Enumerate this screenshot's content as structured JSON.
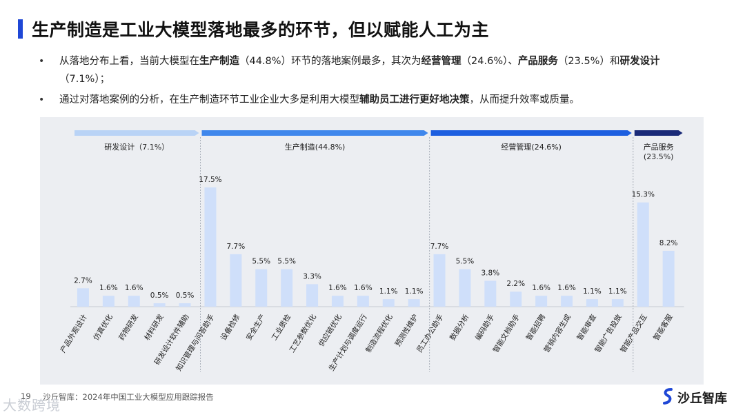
{
  "title": "生产制造是工业大模型落地最多的环节，但以赋能人工为主",
  "bullets": [
    {
      "parts": [
        {
          "t": "从落地分布上看，当前大模型在",
          "b": false
        },
        {
          "t": "生产制造",
          "b": true
        },
        {
          "t": "（44.8%）环节的落地案例最多，其次为",
          "b": false
        },
        {
          "t": "经营管理",
          "b": true
        },
        {
          "t": "（24.6%）、",
          "b": false
        },
        {
          "t": "产品服务",
          "b": true
        },
        {
          "t": "（23.5%）和",
          "b": false
        },
        {
          "t": "研发设计",
          "b": true
        },
        {
          "t": "（7.1%）；",
          "b": false
        }
      ]
    },
    {
      "parts": [
        {
          "t": "通过对落地案例的分析，在生产制造环节工业企业大多是利用大模型",
          "b": false
        },
        {
          "t": "辅助员工进行更好地决策",
          "b": true
        },
        {
          "t": "，从而提升效率或质量。",
          "b": false
        }
      ]
    }
  ],
  "chart_data": {
    "type": "bar",
    "groups": [
      {
        "name": "研发设计（7.1%）",
        "color": "#b9d3f6",
        "categories": [
          "产品外观设计",
          "仿真优化",
          "药物研发",
          "材料研发",
          "研发设计软件辅助"
        ],
        "values": [
          2.7,
          1.6,
          1.6,
          0.5,
          0.5
        ]
      },
      {
        "name": "生产制造(44.8%)",
        "color": "#3f87ec",
        "categories": [
          "知识管理与问答助手",
          "设备检修",
          "安全生产",
          "工业质检",
          "工艺参数优化",
          "供应链优化",
          "生产计划与调度运行",
          "制造流程优化",
          "预测性维护"
        ],
        "values": [
          17.5,
          7.7,
          5.5,
          5.5,
          3.3,
          1.6,
          1.6,
          1.1,
          1.1
        ]
      },
      {
        "name": "经营管理(24.6%)",
        "color": "#1d5fe0",
        "categories": [
          "员工办公助手",
          "数据分析",
          "编码助手",
          "智能文档助手",
          "智能招聘",
          "营销内容生成",
          "智能审查",
          "智能广告投放"
        ],
        "values": [
          7.7,
          5.5,
          3.8,
          2.2,
          1.6,
          1.6,
          1.1,
          1.1
        ]
      },
      {
        "name": "产品服务\n(23.5%)",
        "color": "#1a2a78",
        "categories": [
          "智能产品交互",
          "智能客服"
        ],
        "values": [
          15.3,
          8.2
        ]
      }
    ],
    "bar_color": "#cfdffa",
    "value_suffix": "%",
    "ylim": [
      0,
      18
    ]
  },
  "footer": {
    "page": "19",
    "source": "沙丘智库：2024年中国工业大模型应用跟踪报告"
  },
  "logo": {
    "text": "沙丘智库"
  },
  "watermark": {
    "text": "沙丘智库",
    "corner": "大数跨境"
  },
  "colors": {
    "accent": "#1f47d6"
  }
}
